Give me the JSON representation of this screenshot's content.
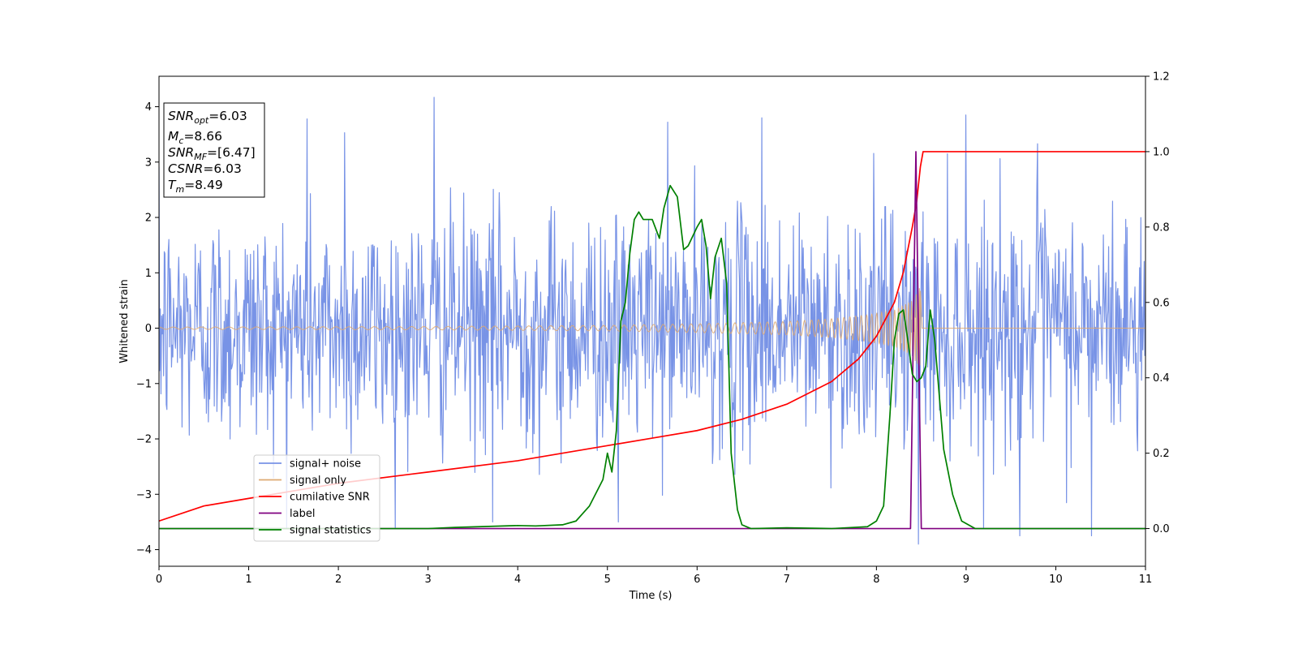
{
  "chart_data": {
    "type": "line",
    "xlabel": "Time (s)",
    "ylabel": "Whitened strain",
    "xlim": [
      0,
      11
    ],
    "ylim": [
      -4.3,
      4.55
    ],
    "y2lim": [
      -0.1,
      1.2
    ],
    "grid": false,
    "legend_position": "lower-left",
    "x_ticks": [
      "0",
      "1",
      "2",
      "3",
      "4",
      "5",
      "6",
      "7",
      "8",
      "9",
      "10",
      "11"
    ],
    "y_ticks": [
      "−4",
      "−3",
      "−2",
      "−1",
      "0",
      "1",
      "2",
      "3",
      "4"
    ],
    "y2_ticks": [
      "0.0",
      "0.2",
      "0.4",
      "0.6",
      "0.8",
      "1.0",
      "1.2"
    ],
    "info_box": {
      "snr_opt": {
        "sym": "SNR",
        "sub": "opt",
        "val": "=6.03"
      },
      "mc": {
        "sym": "M",
        "sub": "c",
        "val": "=8.66"
      },
      "snr_mf": {
        "sym": "SNR",
        "sub": "MF",
        "val": "=[6.47]"
      },
      "csnr": {
        "sym": "CSNR",
        "sub": "",
        "val": "=6.03"
      },
      "tm": {
        "sym": "T",
        "sub": "m",
        "val": "=8.49"
      }
    },
    "series": [
      {
        "name": "signal+ noise",
        "color": "#7893e6",
        "axis": "left",
        "kind": "noise",
        "sample_count": 1500,
        "std": 1.05,
        "notable_peaks": [
          [
            3.07,
            4.17
          ],
          [
            1.65,
            3.78
          ],
          [
            2.07,
            3.53
          ],
          [
            5.67,
            3.72
          ],
          [
            6.72,
            3.8
          ],
          [
            9.0,
            3.85
          ],
          [
            9.8,
            3.33
          ],
          [
            8.47,
            -3.9
          ],
          [
            10.4,
            -3.75
          ],
          [
            9.6,
            -3.75
          ],
          [
            5.12,
            -3.5
          ],
          [
            3.72,
            -3.5
          ]
        ]
      },
      {
        "name": "signal only",
        "color": "#deaa72",
        "axis": "left",
        "kind": "chirp",
        "t_merge": 8.49,
        "amplitude_points": [
          [
            0,
            0.02
          ],
          [
            3.0,
            0.03
          ],
          [
            5.0,
            0.05
          ],
          [
            6.0,
            0.08
          ],
          [
            7.0,
            0.12
          ],
          [
            7.5,
            0.17
          ],
          [
            7.9,
            0.24
          ],
          [
            8.2,
            0.33
          ],
          [
            8.4,
            0.5
          ],
          [
            8.49,
            0.77
          ]
        ]
      },
      {
        "name": "cumilative SNR",
        "color": "#ff0000",
        "axis": "right",
        "points": [
          [
            0,
            0.02
          ],
          [
            0.5,
            0.06
          ],
          [
            1.0,
            0.08
          ],
          [
            2.0,
            0.12
          ],
          [
            3.0,
            0.15
          ],
          [
            4.0,
            0.18
          ],
          [
            5.0,
            0.22
          ],
          [
            5.5,
            0.24
          ],
          [
            6.0,
            0.26
          ],
          [
            6.5,
            0.29
          ],
          [
            7.0,
            0.33
          ],
          [
            7.5,
            0.39
          ],
          [
            7.8,
            0.45
          ],
          [
            8.0,
            0.51
          ],
          [
            8.2,
            0.6
          ],
          [
            8.3,
            0.68
          ],
          [
            8.4,
            0.8
          ],
          [
            8.45,
            0.87
          ],
          [
            8.49,
            0.96
          ],
          [
            8.52,
            1.0
          ],
          [
            11.0,
            1.0
          ]
        ]
      },
      {
        "name": "label",
        "color": "#800080",
        "axis": "right",
        "points": [
          [
            0,
            0.0
          ],
          [
            8.38,
            0.0
          ],
          [
            8.44,
            1.0
          ],
          [
            8.5,
            0.0
          ],
          [
            11.0,
            0.0
          ]
        ]
      },
      {
        "name": "signal statistics",
        "color": "#008000",
        "axis": "right",
        "points": [
          [
            0,
            0.0
          ],
          [
            3.0,
            0.0
          ],
          [
            3.3,
            0.003
          ],
          [
            4.0,
            0.008
          ],
          [
            4.2,
            0.007
          ],
          [
            4.5,
            0.01
          ],
          [
            4.65,
            0.02
          ],
          [
            4.8,
            0.06
          ],
          [
            4.95,
            0.13
          ],
          [
            5.0,
            0.2
          ],
          [
            5.05,
            0.15
          ],
          [
            5.1,
            0.26
          ],
          [
            5.15,
            0.55
          ],
          [
            5.2,
            0.6
          ],
          [
            5.25,
            0.73
          ],
          [
            5.3,
            0.82
          ],
          [
            5.35,
            0.84
          ],
          [
            5.4,
            0.82
          ],
          [
            5.5,
            0.82
          ],
          [
            5.58,
            0.77
          ],
          [
            5.63,
            0.85
          ],
          [
            5.7,
            0.91
          ],
          [
            5.78,
            0.88
          ],
          [
            5.85,
            0.74
          ],
          [
            5.9,
            0.75
          ],
          [
            6.0,
            0.8
          ],
          [
            6.05,
            0.82
          ],
          [
            6.1,
            0.75
          ],
          [
            6.15,
            0.61
          ],
          [
            6.2,
            0.72
          ],
          [
            6.27,
            0.77
          ],
          [
            6.33,
            0.65
          ],
          [
            6.38,
            0.2
          ],
          [
            6.45,
            0.05
          ],
          [
            6.5,
            0.01
          ],
          [
            6.6,
            0.0
          ],
          [
            7.0,
            0.002
          ],
          [
            7.5,
            0.0
          ],
          [
            7.9,
            0.005
          ],
          [
            8.0,
            0.02
          ],
          [
            8.08,
            0.06
          ],
          [
            8.15,
            0.3
          ],
          [
            8.2,
            0.5
          ],
          [
            8.25,
            0.57
          ],
          [
            8.3,
            0.58
          ],
          [
            8.35,
            0.5
          ],
          [
            8.4,
            0.41
          ],
          [
            8.45,
            0.39
          ],
          [
            8.5,
            0.4
          ],
          [
            8.55,
            0.43
          ],
          [
            8.6,
            0.58
          ],
          [
            8.65,
            0.5
          ],
          [
            8.75,
            0.21
          ],
          [
            8.85,
            0.09
          ],
          [
            8.95,
            0.02
          ],
          [
            9.1,
            0.0
          ],
          [
            11.0,
            0.0
          ]
        ]
      }
    ]
  }
}
